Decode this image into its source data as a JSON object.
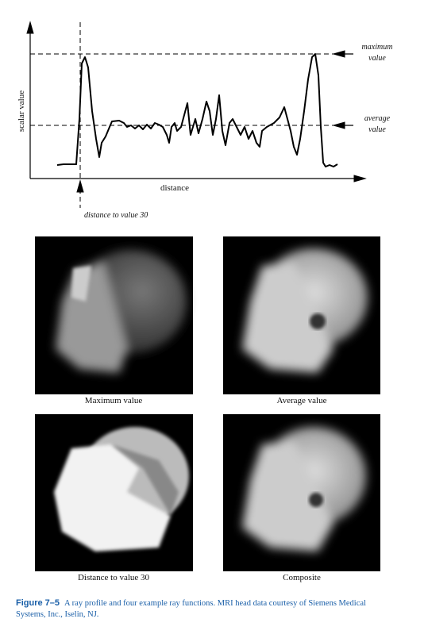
{
  "profile": {
    "y_axis_label": "scalar value",
    "x_axis_label": "distance",
    "maximum_label": [
      "maximum",
      "value"
    ],
    "average_label": [
      "average",
      "value"
    ],
    "distance_label": "distance to value 30"
  },
  "panels": [
    {
      "caption": "Maximum value"
    },
    {
      "caption": "Average value"
    },
    {
      "caption": "Distance to value 30"
    },
    {
      "caption": "Composite"
    }
  ],
  "figure_caption": {
    "label": "Figure 7–5",
    "text": "A ray profile and four example ray functions. MRI head data courtesy of Siemens Medical Systems, Inc., Iselin, NJ."
  }
}
